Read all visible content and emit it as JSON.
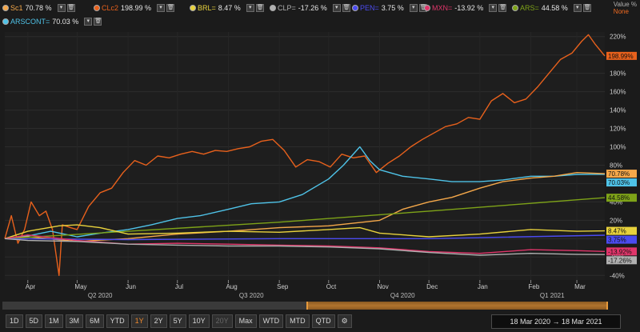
{
  "legend": [
    {
      "name": "Sc1",
      "value": "70.78 %",
      "color": "#f5a84a"
    },
    {
      "name": "CLc2",
      "value": "198.99 %",
      "color": "#e8611c"
    },
    {
      "name": "BRL=",
      "value": "8.47 %",
      "color": "#e8d23c"
    },
    {
      "name": "CLP=",
      "value": "-17.26 %",
      "color": "#b0b0b0"
    },
    {
      "name": "PEN=",
      "value": "3.75 %",
      "color": "#4b4bf0"
    },
    {
      "name": "MXN=",
      "value": "-13.92 %",
      "color": "#e0356a"
    },
    {
      "name": "ARS=",
      "value": "44.58 %",
      "color": "#7ea318"
    },
    {
      "name": "ARSCONT=",
      "value": "70.03 %",
      "color": "#4fc3e8"
    }
  ],
  "value_mode": {
    "label": "Value %",
    "value": "None"
  },
  "range_buttons": [
    "1D",
    "5D",
    "1M",
    "3M",
    "6M",
    "YTD",
    "1Y",
    "2Y",
    "5Y",
    "10Y",
    "20Y",
    "Max",
    "WTD",
    "MTD",
    "QTD"
  ],
  "active_range": "1Y",
  "disabled_range": "20Y",
  "date_range": {
    "from": "18 Mar 2020",
    "arrow": "→",
    "to": "18 Mar 2021"
  },
  "chart_data": {
    "type": "line",
    "y_unit": "%",
    "ylim": [
      -45,
      225
    ],
    "y_ticks": [
      -40,
      -20,
      0,
      20,
      40,
      60,
      80,
      100,
      120,
      140,
      160,
      180,
      200,
      220
    ],
    "y_tick_labels": [
      "-40%",
      "-20%",
      "0%",
      "20%",
      "40%",
      "60%",
      "80%",
      "100%",
      "120%",
      "140%",
      "160%",
      "180%",
      "200%",
      "220%"
    ],
    "x_start": "2020-03-18",
    "x_end": "2021-03-18",
    "month_ticks": [
      {
        "label": "Apr",
        "date": "2020-04-01"
      },
      {
        "label": "May",
        "date": "2020-05-01"
      },
      {
        "label": "Jun",
        "date": "2020-06-01"
      },
      {
        "label": "Jul",
        "date": "2020-07-01"
      },
      {
        "label": "Aug",
        "date": "2020-08-01"
      },
      {
        "label": "Sep",
        "date": "2020-09-01"
      },
      {
        "label": "Oct",
        "date": "2020-10-01"
      },
      {
        "label": "Nov",
        "date": "2020-11-01"
      },
      {
        "label": "Dec",
        "date": "2020-12-01"
      },
      {
        "label": "Jan",
        "date": "2021-01-01"
      },
      {
        "label": "Feb",
        "date": "2021-02-01"
      },
      {
        "label": "Mar",
        "date": "2021-03-01"
      }
    ],
    "quarter_labels": [
      {
        "label": "Q2 2020",
        "date": "2020-05-15"
      },
      {
        "label": "Q3 2020",
        "date": "2020-08-15"
      },
      {
        "label": "Q4 2020",
        "date": "2020-11-15"
      },
      {
        "label": "Q1 2021",
        "date": "2021-02-14"
      }
    ],
    "series": [
      {
        "name": "CLc2",
        "color": "#e8611c",
        "end_label": "198.99%",
        "points": [
          [
            "2020-03-18",
            0
          ],
          [
            "2020-03-22",
            25
          ],
          [
            "2020-03-26",
            -5
          ],
          [
            "2020-03-30",
            10
          ],
          [
            "2020-04-03",
            40
          ],
          [
            "2020-04-08",
            25
          ],
          [
            "2020-04-12",
            30
          ],
          [
            "2020-04-16",
            10
          ],
          [
            "2020-04-20",
            -40
          ],
          [
            "2020-04-22",
            15
          ],
          [
            "2020-04-27",
            12
          ],
          [
            "2020-05-01",
            10
          ],
          [
            "2020-05-08",
            35
          ],
          [
            "2020-05-15",
            50
          ],
          [
            "2020-05-22",
            55
          ],
          [
            "2020-05-29",
            72
          ],
          [
            "2020-06-05",
            85
          ],
          [
            "2020-06-12",
            80
          ],
          [
            "2020-06-19",
            90
          ],
          [
            "2020-06-26",
            88
          ],
          [
            "2020-07-03",
            92
          ],
          [
            "2020-07-10",
            95
          ],
          [
            "2020-07-17",
            92
          ],
          [
            "2020-07-24",
            96
          ],
          [
            "2020-07-31",
            95
          ],
          [
            "2020-08-07",
            98
          ],
          [
            "2020-08-14",
            100
          ],
          [
            "2020-08-21",
            106
          ],
          [
            "2020-08-28",
            108
          ],
          [
            "2020-09-04",
            96
          ],
          [
            "2020-09-11",
            78
          ],
          [
            "2020-09-18",
            86
          ],
          [
            "2020-09-25",
            84
          ],
          [
            "2020-10-02",
            78
          ],
          [
            "2020-10-09",
            92
          ],
          [
            "2020-10-16",
            88
          ],
          [
            "2020-10-23",
            90
          ],
          [
            "2020-10-30",
            72
          ],
          [
            "2020-11-06",
            82
          ],
          [
            "2020-11-13",
            90
          ],
          [
            "2020-11-20",
            100
          ],
          [
            "2020-11-27",
            108
          ],
          [
            "2020-12-04",
            115
          ],
          [
            "2020-12-11",
            122
          ],
          [
            "2020-12-18",
            125
          ],
          [
            "2020-12-25",
            132
          ],
          [
            "2021-01-01",
            130
          ],
          [
            "2021-01-08",
            150
          ],
          [
            "2021-01-15",
            158
          ],
          [
            "2021-01-22",
            148
          ],
          [
            "2021-01-29",
            152
          ],
          [
            "2021-02-05",
            165
          ],
          [
            "2021-02-12",
            180
          ],
          [
            "2021-02-19",
            195
          ],
          [
            "2021-02-26",
            202
          ],
          [
            "2021-03-04",
            215
          ],
          [
            "2021-03-08",
            222
          ],
          [
            "2021-03-12",
            212
          ],
          [
            "2021-03-18",
            199
          ]
        ]
      },
      {
        "name": "ARSCONT",
        "color": "#4fc3e8",
        "end_label": "70.03%",
        "points": [
          [
            "2020-03-18",
            0
          ],
          [
            "2020-04-01",
            3
          ],
          [
            "2020-04-15",
            8
          ],
          [
            "2020-05-01",
            2
          ],
          [
            "2020-05-15",
            6
          ],
          [
            "2020-06-01",
            10
          ],
          [
            "2020-06-15",
            15
          ],
          [
            "2020-07-01",
            22
          ],
          [
            "2020-07-15",
            25
          ],
          [
            "2020-08-01",
            32
          ],
          [
            "2020-08-15",
            38
          ],
          [
            "2020-09-01",
            40
          ],
          [
            "2020-09-15",
            48
          ],
          [
            "2020-10-01",
            65
          ],
          [
            "2020-10-10",
            80
          ],
          [
            "2020-10-20",
            100
          ],
          [
            "2020-10-26",
            85
          ],
          [
            "2020-11-01",
            75
          ],
          [
            "2020-11-15",
            68
          ],
          [
            "2020-12-01",
            65
          ],
          [
            "2020-12-15",
            62
          ],
          [
            "2021-01-01",
            62
          ],
          [
            "2021-01-15",
            64
          ],
          [
            "2021-02-01",
            68
          ],
          [
            "2021-02-15",
            68
          ],
          [
            "2021-03-01",
            70
          ],
          [
            "2021-03-18",
            70.03
          ]
        ]
      },
      {
        "name": "Sc1",
        "color": "#f5a84a",
        "end_label": "70.78%",
        "points": [
          [
            "2020-03-18",
            0
          ],
          [
            "2020-04-01",
            2
          ],
          [
            "2020-05-01",
            -3
          ],
          [
            "2020-06-01",
            0
          ],
          [
            "2020-07-01",
            5
          ],
          [
            "2020-08-01",
            8
          ],
          [
            "2020-09-01",
            12
          ],
          [
            "2020-10-01",
            14
          ],
          [
            "2020-11-01",
            20
          ],
          [
            "2020-11-15",
            32
          ],
          [
            "2020-12-01",
            40
          ],
          [
            "2020-12-15",
            45
          ],
          [
            "2021-01-01",
            55
          ],
          [
            "2021-01-15",
            62
          ],
          [
            "2021-02-01",
            66
          ],
          [
            "2021-02-15",
            68
          ],
          [
            "2021-03-01",
            72
          ],
          [
            "2021-03-18",
            70.78
          ]
        ]
      },
      {
        "name": "ARS",
        "color": "#7ea318",
        "end_label": "44.58%",
        "points": [
          [
            "2020-03-18",
            0
          ],
          [
            "2020-06-01",
            8
          ],
          [
            "2020-09-01",
            18
          ],
          [
            "2020-12-01",
            30
          ],
          [
            "2021-03-18",
            44.58
          ]
        ]
      },
      {
        "name": "BRL",
        "color": "#e8d23c",
        "end_label": "8.47%",
        "points": [
          [
            "2020-03-18",
            0
          ],
          [
            "2020-04-01",
            8
          ],
          [
            "2020-04-20",
            14
          ],
          [
            "2020-05-01",
            15
          ],
          [
            "2020-05-15",
            12
          ],
          [
            "2020-06-01",
            5
          ],
          [
            "2020-07-01",
            6
          ],
          [
            "2020-08-01",
            8
          ],
          [
            "2020-09-01",
            7
          ],
          [
            "2020-10-01",
            10
          ],
          [
            "2020-10-20",
            12
          ],
          [
            "2020-11-01",
            6
          ],
          [
            "2020-12-01",
            2
          ],
          [
            "2021-01-01",
            5
          ],
          [
            "2021-02-01",
            10
          ],
          [
            "2021-03-01",
            8
          ],
          [
            "2021-03-18",
            8.47
          ]
        ]
      },
      {
        "name": "PEN",
        "color": "#4b4bf0",
        "end_label": "3.75%",
        "points": [
          [
            "2020-03-18",
            0
          ],
          [
            "2020-06-01",
            -1
          ],
          [
            "2020-09-01",
            0
          ],
          [
            "2020-12-01",
            0
          ],
          [
            "2021-03-18",
            3.75
          ]
        ]
      },
      {
        "name": "MXN",
        "color": "#e0356a",
        "end_label": "-13.92%",
        "points": [
          [
            "2020-03-18",
            0
          ],
          [
            "2020-04-01",
            4
          ],
          [
            "2020-05-01",
            -2
          ],
          [
            "2020-06-01",
            -6
          ],
          [
            "2020-07-01",
            -5
          ],
          [
            "2020-08-01",
            -6
          ],
          [
            "2020-09-01",
            -7
          ],
          [
            "2020-10-01",
            -8
          ],
          [
            "2020-11-01",
            -10
          ],
          [
            "2020-12-01",
            -14
          ],
          [
            "2021-01-01",
            -16
          ],
          [
            "2021-02-01",
            -12
          ],
          [
            "2021-03-01",
            -13
          ],
          [
            "2021-03-18",
            -13.92
          ]
        ]
      },
      {
        "name": "CLP",
        "color": "#b0b0b0",
        "end_label": "-17.26%",
        "points": [
          [
            "2020-03-18",
            0
          ],
          [
            "2020-04-01",
            -2
          ],
          [
            "2020-05-01",
            -3
          ],
          [
            "2020-06-01",
            -6
          ],
          [
            "2020-07-01",
            -7
          ],
          [
            "2020-08-01",
            -8
          ],
          [
            "2020-09-01",
            -8
          ],
          [
            "2020-10-01",
            -9
          ],
          [
            "2020-11-01",
            -11
          ],
          [
            "2020-12-01",
            -15
          ],
          [
            "2021-01-01",
            -18
          ],
          [
            "2021-02-01",
            -16
          ],
          [
            "2021-03-01",
            -17
          ],
          [
            "2021-03-18",
            -17.26
          ]
        ]
      }
    ]
  }
}
